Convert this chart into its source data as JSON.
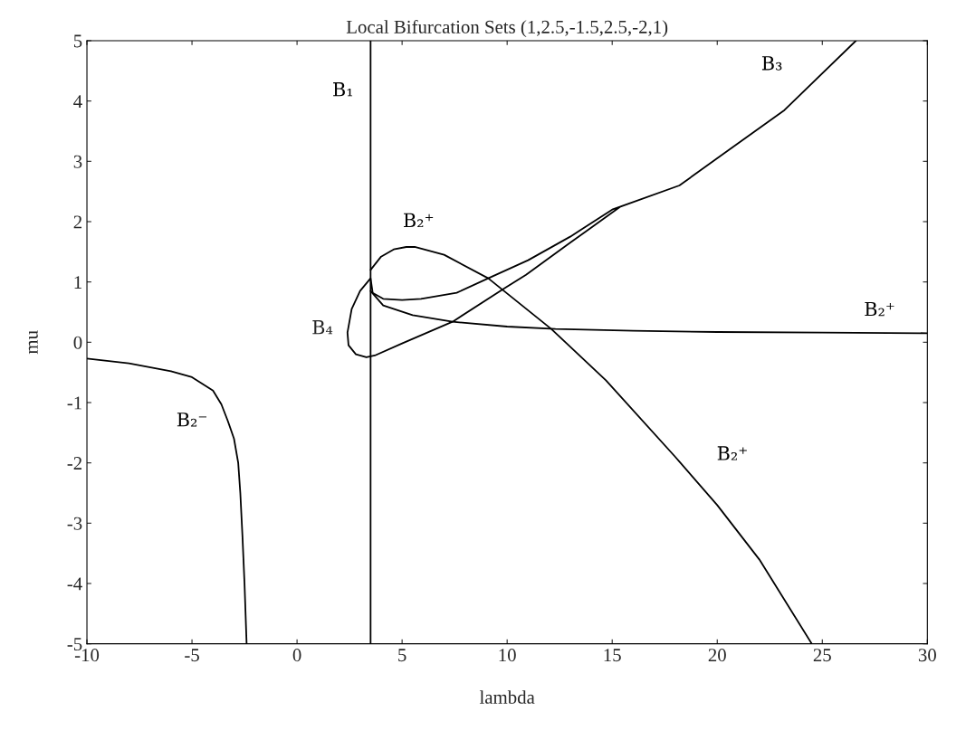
{
  "chart_data": {
    "type": "line",
    "title": "Local Bifurcation Sets (1,2.5,-1.5,2.5,-2,1)",
    "xlabel": "lambda",
    "ylabel": "mu",
    "xlim": [
      -10,
      30
    ],
    "ylim": [
      -5,
      5
    ],
    "xticks": [
      -10,
      -5,
      0,
      5,
      10,
      15,
      20,
      25,
      30
    ],
    "yticks": [
      -5,
      -4,
      -3,
      -2,
      -1,
      0,
      1,
      2,
      3,
      4,
      5
    ],
    "grid": false,
    "legend": false,
    "marker": "none",
    "line_style": "solid",
    "series": [
      {
        "name": "B₁",
        "color": "#000000",
        "x": [
          3.5,
          3.5
        ],
        "values": [
          -5,
          5
        ]
      },
      {
        "name": "B₂⁻",
        "color": "#000000",
        "x": [
          -10,
          -8,
          -6,
          -5,
          -4,
          -3.6,
          -3.3,
          -3.0,
          -2.8,
          -2.7,
          -2.6,
          -2.5,
          -2.4
        ],
        "values": [
          -0.27,
          -0.35,
          -0.48,
          -0.58,
          -0.8,
          -1.03,
          -1.3,
          -1.6,
          -2.0,
          -2.5,
          -3.2,
          -4.0,
          -5
        ]
      },
      {
        "name": "B₃",
        "color": "#000000",
        "x": [
          18.2,
          15,
          13,
          11.0,
          9.1,
          7.6,
          5.9,
          5.0,
          4.1,
          3.6,
          3.5,
          3.0,
          2.6,
          2.4,
          2.45,
          2.8,
          3.3,
          3.7,
          5,
          7.4,
          9.9,
          10.9,
          13,
          15.4,
          18.2,
          20.4,
          23.2,
          26.6
        ],
        "values": [
          2.6,
          2.2,
          1.75,
          1.36,
          1.06,
          0.82,
          0.72,
          0.7,
          0.72,
          0.82,
          1.06,
          0.85,
          0.55,
          0.16,
          -0.05,
          -0.2,
          -0.25,
          -0.22,
          -0.02,
          0.34,
          0.9,
          1.12,
          1.65,
          2.25,
          2.6,
          3.15,
          3.85,
          5
        ]
      },
      {
        "name": "B₂⁺",
        "color": "#000000",
        "x": [
          3.5,
          4.0,
          4.6,
          5.2,
          5.6,
          7,
          9.1,
          12.1,
          14.7,
          18,
          20,
          22,
          24.5
        ],
        "values": [
          1.2,
          1.42,
          1.54,
          1.58,
          1.58,
          1.45,
          1.06,
          0.22,
          -0.63,
          -1.9,
          -2.7,
          -3.6,
          -5
        ]
      },
      {
        "name": "B₂⁺",
        "color": "#000000",
        "x": [
          3.5,
          4.1,
          5.5,
          7.4,
          10,
          12.3,
          16,
          20,
          25,
          30
        ],
        "values": [
          0.85,
          0.61,
          0.45,
          0.34,
          0.26,
          0.22,
          0.19,
          0.17,
          0.16,
          0.15
        ]
      }
    ],
    "annotations": [
      "B₄"
    ]
  }
}
